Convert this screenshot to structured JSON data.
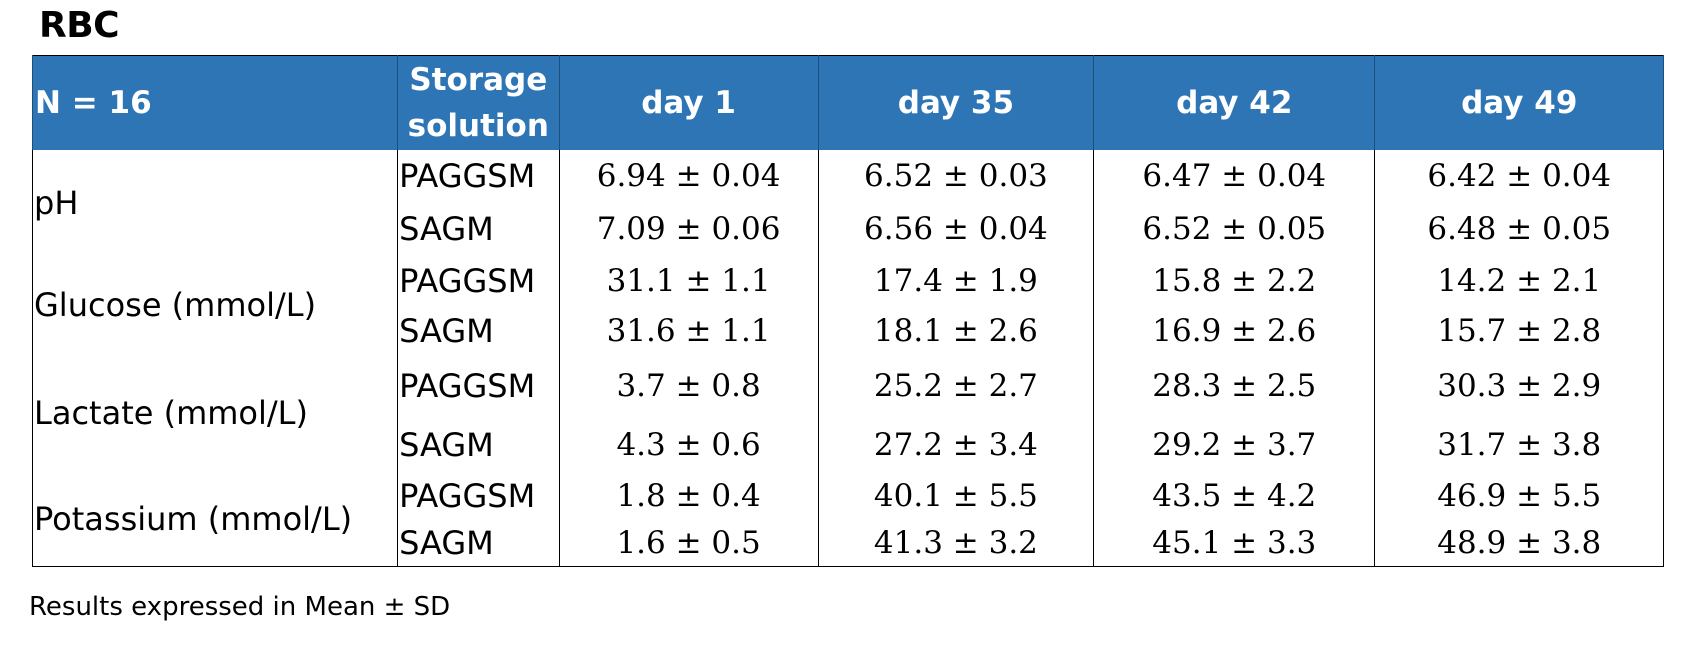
{
  "title": "RBC",
  "header": {
    "n_label": "N = 16",
    "storage_line1": "Storage",
    "storage_line2": "solution",
    "days": [
      "day 1",
      "day 35",
      "day 42",
      "day 49"
    ]
  },
  "parameters": [
    {
      "name": "pH",
      "rows": [
        {
          "solution": "PAGGSM",
          "values": [
            "6.94 ± 0.04",
            "6.52 ± 0.03",
            "6.47 ± 0.04",
            "6.42 ± 0.04"
          ]
        },
        {
          "solution": "SAGM",
          "values": [
            "7.09 ± 0.06",
            "6.56 ± 0.04",
            "6.52 ± 0.05",
            "6.48 ± 0.05"
          ]
        }
      ]
    },
    {
      "name": "Glucose (mmol/L)",
      "rows": [
        {
          "solution": "PAGGSM",
          "values": [
            "31.1 ± 1.1",
            "17.4 ± 1.9",
            "15.8 ± 2.2",
            "14.2 ± 2.1"
          ]
        },
        {
          "solution": "SAGM",
          "values": [
            "31.6 ± 1.1",
            "18.1 ± 2.6",
            "16.9 ± 2.6",
            "15.7 ± 2.8"
          ]
        }
      ]
    },
    {
      "name": "Lactate (mmol/L)",
      "rows": [
        {
          "solution": "PAGGSM",
          "values": [
            "3.7 ± 0.8",
            "25.2 ± 2.7",
            "28.3 ± 2.5",
            "30.3 ± 2.9"
          ]
        },
        {
          "solution": "SAGM",
          "values": [
            "4.3 ± 0.6",
            "27.2 ± 3.4",
            "29.2 ± 3.7",
            "31.7 ± 3.8"
          ]
        }
      ]
    },
    {
      "name": "Potassium (mmol/L)",
      "rows": [
        {
          "solution": "PAGGSM",
          "values": [
            "1.8 ± 0.4",
            "40.1 ± 5.5",
            "43.5 ± 4.2",
            "46.9 ± 5.5"
          ]
        },
        {
          "solution": "SAGM",
          "values": [
            "1.6 ± 0.5",
            "41.3 ± 3.2",
            "45.1 ± 3.3",
            "48.9 ± 3.8"
          ]
        }
      ]
    }
  ],
  "footnote": "Results expressed in Mean ± SD",
  "colors": {
    "header_background": "#2e75b6",
    "header_text": "#ffffff"
  }
}
